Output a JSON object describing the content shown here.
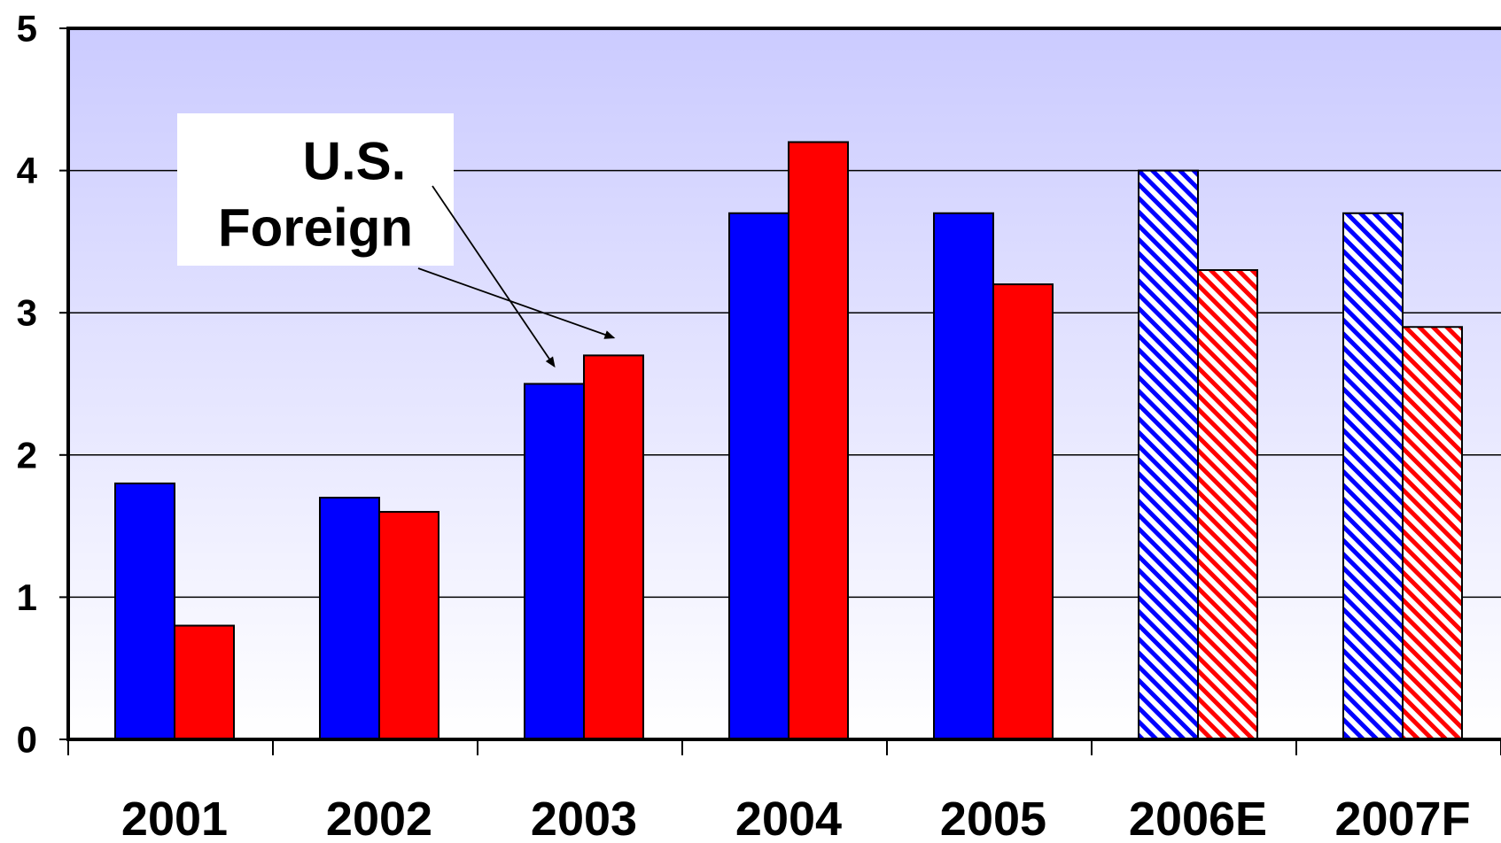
{
  "chart_data": {
    "type": "bar",
    "title": "",
    "xlabel": "",
    "ylabel": "",
    "ylim": [
      0,
      5
    ],
    "yticks": [
      0,
      1,
      2,
      3,
      4,
      5
    ],
    "grid": true,
    "categories": [
      "2001",
      "2002",
      "2003",
      "2004",
      "2005",
      "2006E",
      "2007F"
    ],
    "projected_categories": [
      "2006E",
      "2007F"
    ],
    "series": [
      {
        "name": "U.S.",
        "color": "#0000ff",
        "values": [
          1.8,
          1.7,
          2.5,
          3.7,
          3.7,
          4.0,
          3.7
        ]
      },
      {
        "name": "Foreign",
        "color": "#ff0000",
        "values": [
          0.8,
          1.6,
          2.7,
          4.2,
          3.2,
          3.3,
          2.9
        ]
      }
    ],
    "legend": {
      "placement": "top-left",
      "style": "annotation-arrows",
      "points_to_category": "2003"
    },
    "background_gradient": [
      "#cbcbff",
      "#ffffff"
    ]
  }
}
